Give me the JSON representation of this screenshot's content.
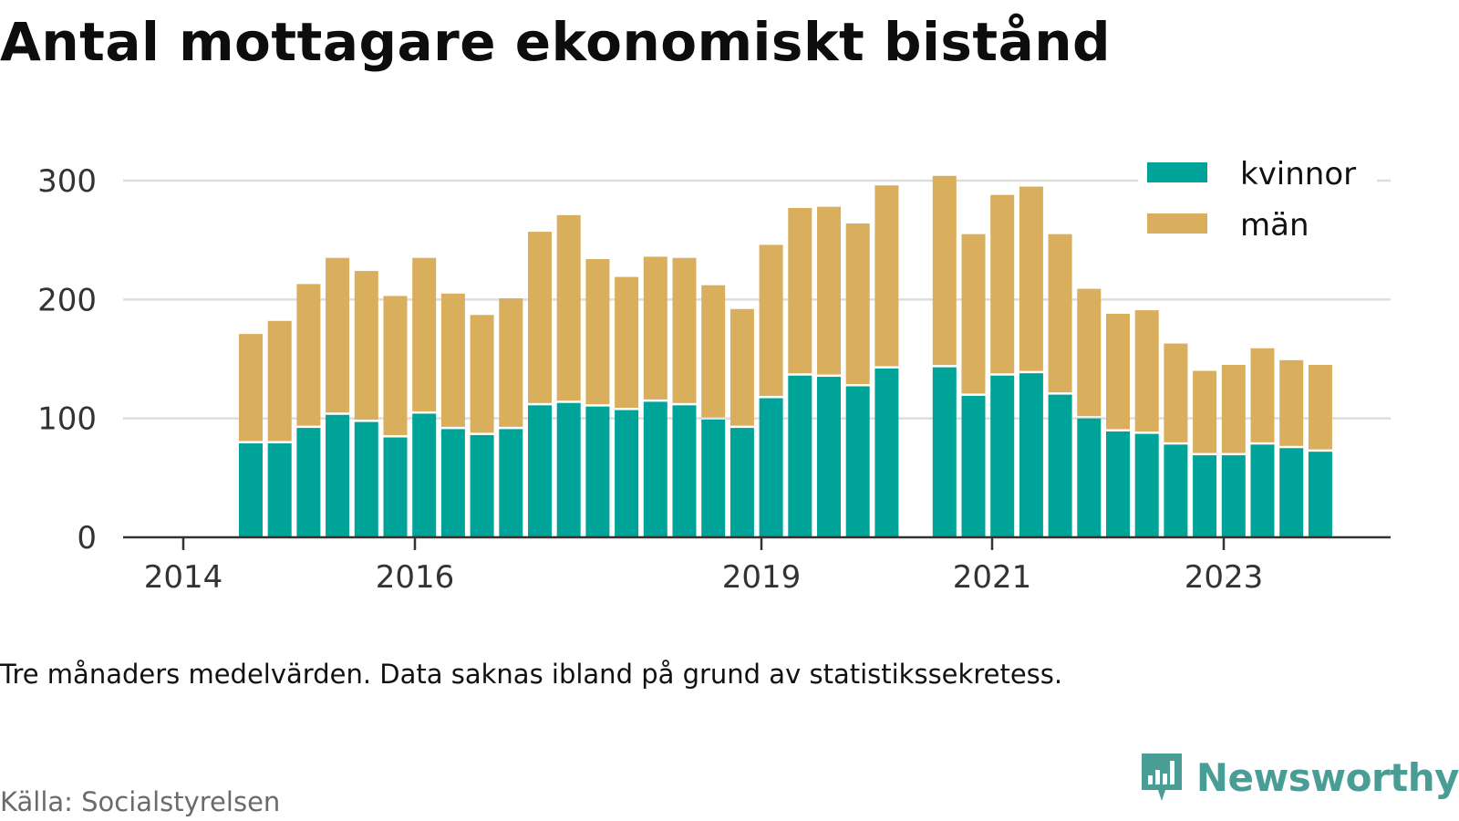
{
  "title": "Antal mottagare ekonomiskt bistånd",
  "note": "Tre månaders medelvärden. Data saknas ibland på grund av statistikssekretess.",
  "source": "Källa: Socialstyrelsen",
  "brand": "Newsworthy",
  "colors": {
    "kvinnor": "#00a398",
    "man": "#d9ae5c",
    "grid": "#dddddd",
    "axis": "#333333",
    "brand": "#4a9d95"
  },
  "chart_data": {
    "type": "bar",
    "stacked": true,
    "ylim": [
      0,
      320
    ],
    "yticks": [
      "0",
      "100",
      "200",
      "300"
    ],
    "xtick_labels": [
      "2014",
      "2016",
      "2019",
      "2021",
      "2023"
    ],
    "grid": true,
    "legend_position": "top-right",
    "categories": [
      "2014 Q3",
      "2014 Q4",
      "2015 Q1",
      "2015 Q2",
      "2015 Q3",
      "2015 Q4",
      "2016 Q1",
      "2016 Q2",
      "2016 Q3",
      "2016 Q4",
      "2017 Q1",
      "2017 Q2",
      "2017 Q3",
      "2017 Q4",
      "2018 Q1",
      "2018 Q2",
      "2018 Q3",
      "2018 Q4",
      "2019 Q1",
      "2019 Q2",
      "2019 Q3",
      "2019 Q4",
      "2020 Q1",
      "2020 Q2",
      "2020 Q3",
      "2020 Q4",
      "2021 Q1",
      "2021 Q2",
      "2021 Q3",
      "2021 Q4",
      "2022 Q1",
      "2022 Q2",
      "2022 Q3",
      "2022 Q4",
      "2023 Q1",
      "2023 Q2",
      "2023 Q3",
      "2023 Q4"
    ],
    "series": [
      {
        "name": "kvinnor",
        "values": [
          79,
          79,
          92,
          103,
          97,
          84,
          104,
          91,
          86,
          91,
          111,
          113,
          110,
          107,
          114,
          111,
          99,
          92,
          117,
          136,
          135,
          127,
          142,
          null,
          143,
          119,
          136,
          138,
          120,
          100,
          89,
          87,
          78,
          69,
          69,
          78,
          75,
          72
        ]
      },
      {
        "name": "män",
        "values": [
          92,
          103,
          121,
          132,
          127,
          119,
          131,
          114,
          101,
          110,
          146,
          158,
          124,
          112,
          122,
          124,
          113,
          100,
          129,
          141,
          143,
          137,
          154,
          null,
          161,
          136,
          152,
          157,
          135,
          109,
          99,
          104,
          85,
          71,
          76,
          81,
          74,
          73
        ]
      }
    ]
  }
}
